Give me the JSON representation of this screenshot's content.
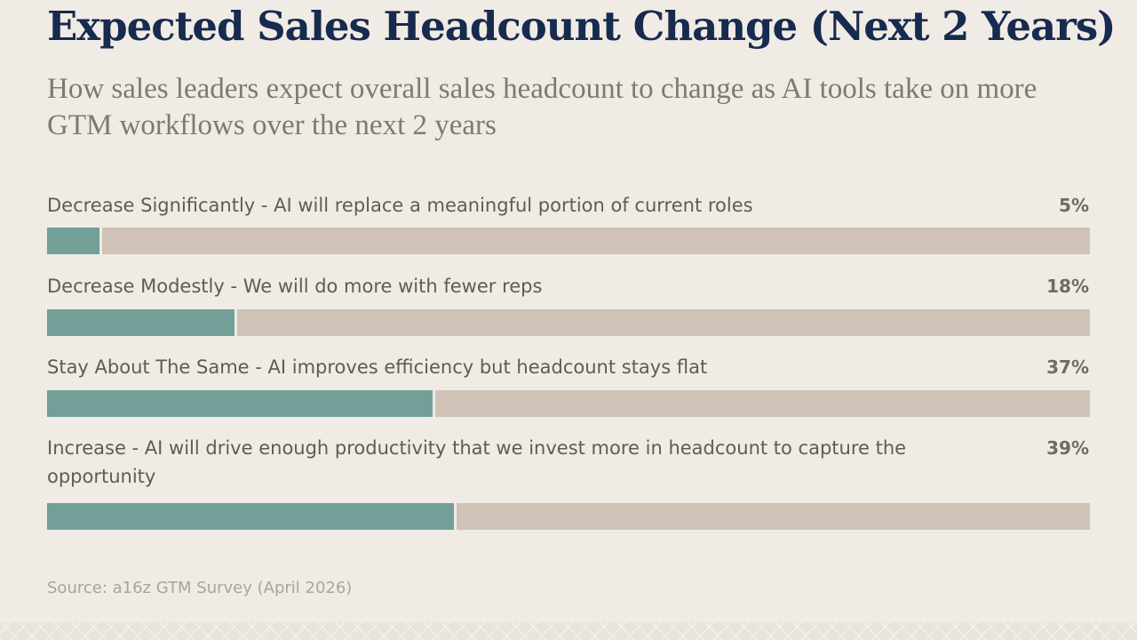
{
  "title": "Expected Sales Headcount Change (Next 2 Years)",
  "subtitle": "How sales leaders expect overall sales headcount to change as AI tools take on more GTM workflows over the next 2 years",
  "source": "Source: a16z GTM Survey (April 2026)",
  "colors": {
    "background": "#f0ebe4",
    "bar_fill": "#739f99",
    "bar_track": "#cec3b6",
    "title": "#172a4f"
  },
  "chart_data": {
    "type": "bar",
    "orientation": "horizontal",
    "xlim": [
      0,
      100
    ],
    "grid": false,
    "legend": "none",
    "categories": [
      "Decrease Significantly - AI will replace a meaningful portion of current roles",
      "Decrease Modestly - We will do more with fewer reps",
      "Stay About The Same - AI improves efficiency but headcount stays flat",
      "Increase - AI will drive enough productivity that we invest more in headcount to capture the opportunity"
    ],
    "values": [
      5,
      18,
      37,
      39
    ],
    "value_labels": [
      "5%",
      "18%",
      "37%",
      "39%"
    ]
  }
}
